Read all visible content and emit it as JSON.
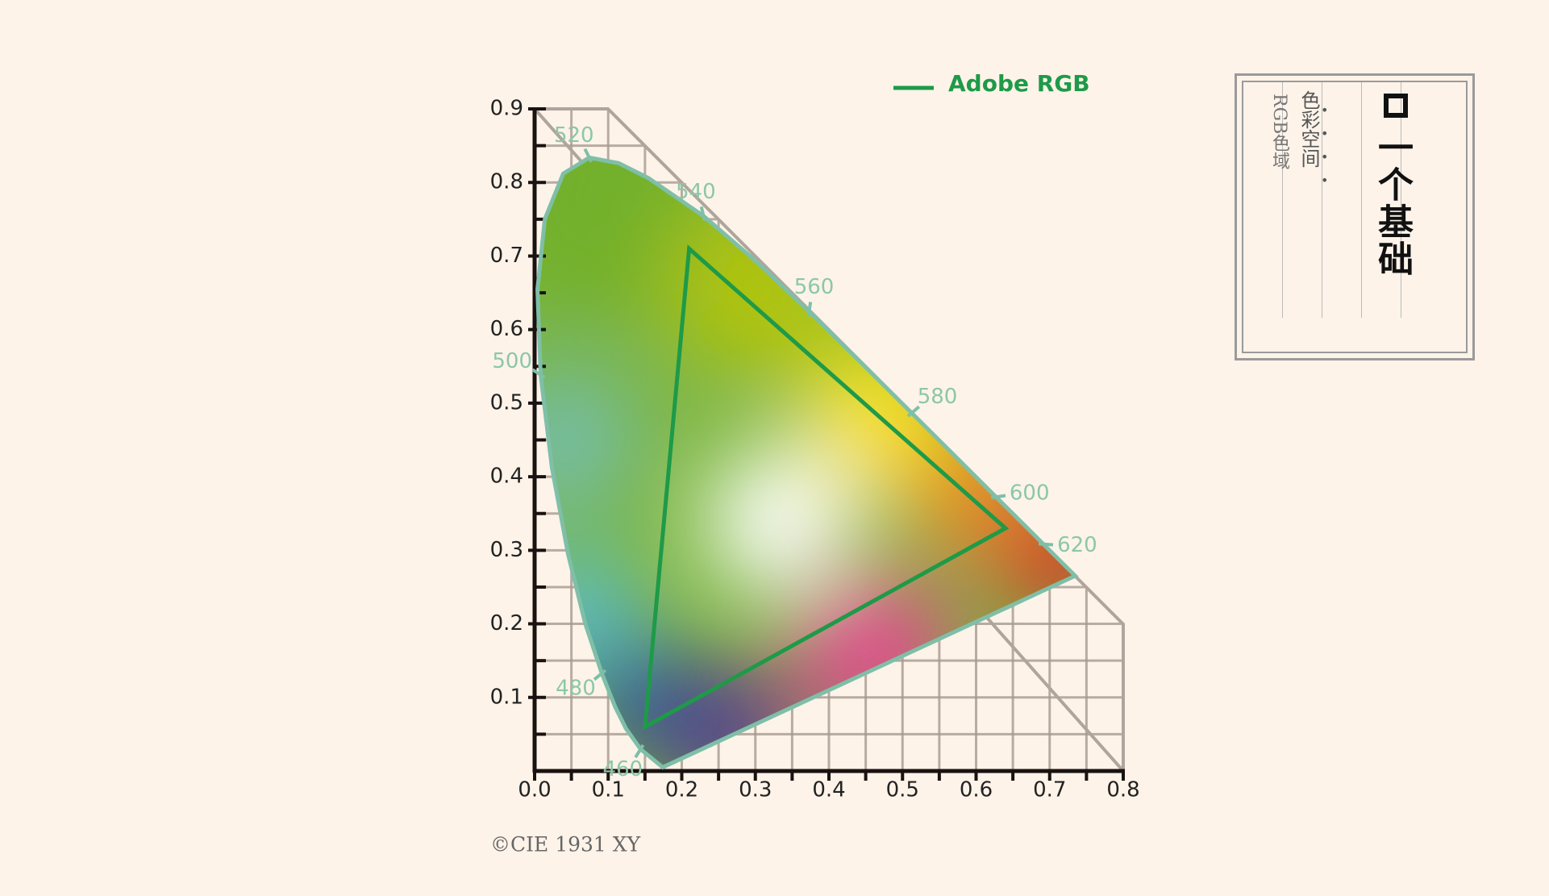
{
  "chart_data": {
    "type": "line",
    "xlim": [
      0,
      0.8
    ],
    "ylim": [
      0,
      0.9
    ],
    "xticks": [
      {
        "value": 0,
        "label": "0.0"
      },
      0.1,
      0.2,
      0.3,
      0.4,
      0.5,
      0.6,
      0.7,
      0.8
    ],
    "yticks": [
      0.1,
      0.2,
      0.3,
      0.4,
      0.5,
      0.6,
      0.7,
      0.8,
      0.9
    ],
    "grid": true,
    "locus": {
      "color": "#7fbfa8",
      "nm": [
        null,
        460,
        null,
        null,
        480,
        null,
        null,
        null,
        500,
        null,
        null,
        null,
        520,
        null,
        null,
        540,
        null,
        560,
        null,
        580,
        null,
        600,
        null,
        620,
        null,
        null
      ],
      "x": [
        0.1741,
        0.144,
        0.1241,
        0.1096,
        0.0913,
        0.0687,
        0.0454,
        0.0235,
        0.0082,
        0.0039,
        0.0139,
        0.0389,
        0.0743,
        0.1142,
        0.1547,
        0.2296,
        0.3016,
        0.3731,
        0.4441,
        0.5125,
        0.5752,
        0.627,
        0.6658,
        0.6915,
        0.719,
        0.7347
      ],
      "y": [
        0.005,
        0.0297,
        0.0578,
        0.0868,
        0.1327,
        0.2007,
        0.295,
        0.4127,
        0.5384,
        0.6548,
        0.7502,
        0.812,
        0.8338,
        0.8262,
        0.8059,
        0.7543,
        0.6923,
        0.6245,
        0.5547,
        0.4866,
        0.4242,
        0.3725,
        0.334,
        0.3083,
        0.2809,
        0.2653
      ]
    },
    "series": [
      {
        "name": "Adobe RGB",
        "color": "#1e9a48",
        "x": [
          0.64,
          0.21,
          0.15
        ],
        "y": [
          0.33,
          0.71,
          0.06
        ]
      }
    ],
    "legend": "top",
    "note": "©CIE 1931 XY"
  },
  "sidebar": {
    "title": "一个基础",
    "lines": [
      "色彩空间",
      "RGB色域"
    ]
  }
}
